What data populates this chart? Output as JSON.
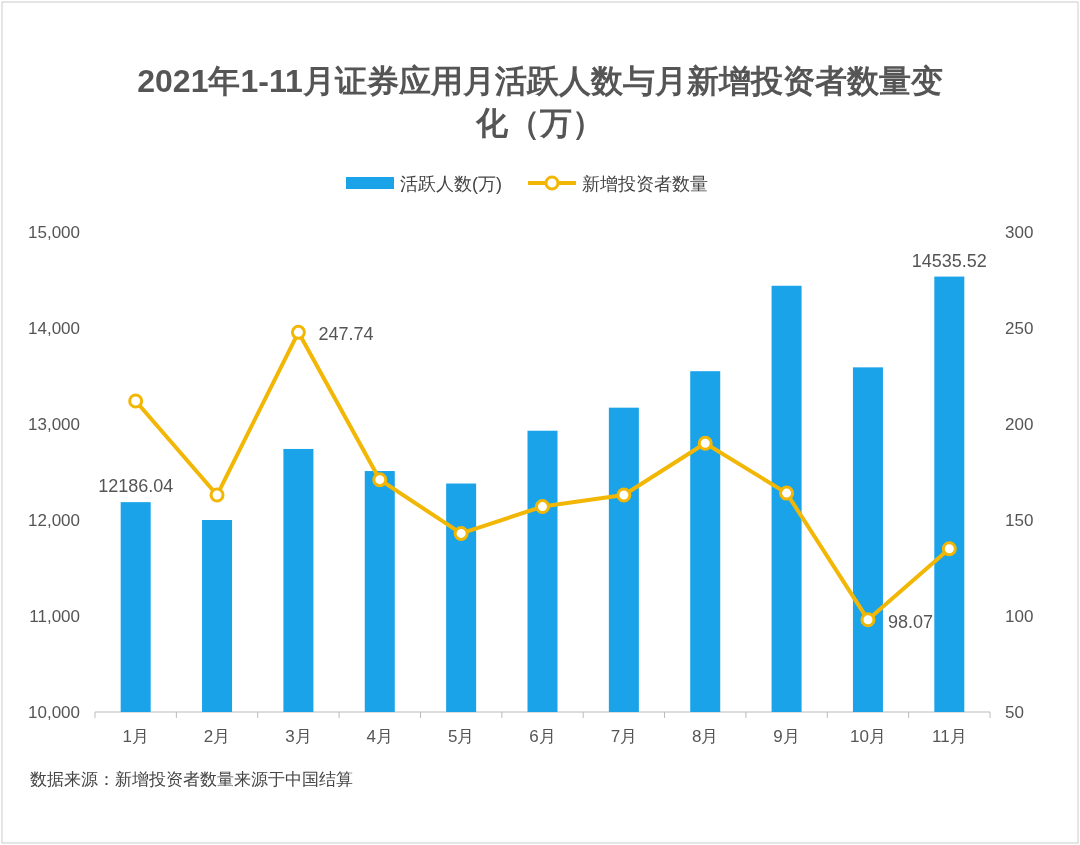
{
  "chart_data": {
    "type": "bar",
    "title": "2021年1-11月证券应用月活跃人数与月新增投资者数量变化（万）",
    "categories": [
      "1月",
      "2月",
      "3月",
      "4月",
      "5月",
      "6月",
      "7月",
      "8月",
      "9月",
      "10月",
      "11月"
    ],
    "series": [
      {
        "name": "活跃人数(万)",
        "color": "#1aa3e8",
        "values": [
          12186.04,
          12000,
          12740,
          12510,
          12380,
          12930,
          13170,
          13550,
          14440,
          13590,
          14535.52
        ],
        "value_labels": [
          "12186.04",
          null,
          null,
          null,
          null,
          null,
          null,
          null,
          null,
          null,
          "14535.52"
        ]
      },
      {
        "name": "新增投资者数量",
        "type": "line",
        "axis": "y2",
        "color": "#f2b705",
        "values": [
          212,
          163,
          247.74,
          171,
          143,
          157,
          163,
          190,
          164,
          98.07,
          135
        ],
        "value_labels": [
          null,
          null,
          "247.74",
          null,
          null,
          null,
          null,
          null,
          null,
          "98.07",
          null
        ]
      }
    ],
    "ylim": [
      10000,
      15000
    ],
    "yticks": [
      {
        "value": 10000,
        "label": "10,000"
      },
      {
        "value": 11000,
        "label": "11,000"
      },
      {
        "value": 12000,
        "label": "12,000"
      },
      {
        "value": 13000,
        "label": "13,000"
      },
      {
        "value": 14000,
        "label": "14,000"
      },
      {
        "value": 15000,
        "label": "15,000"
      }
    ],
    "y2lim": [
      50,
      300
    ],
    "y2ticks": [
      50,
      100,
      150,
      200,
      250,
      300
    ],
    "legend": "top",
    "marker": "circle",
    "annotations": [
      "数据来源：新增投资者数量来源于中国结算"
    ]
  }
}
